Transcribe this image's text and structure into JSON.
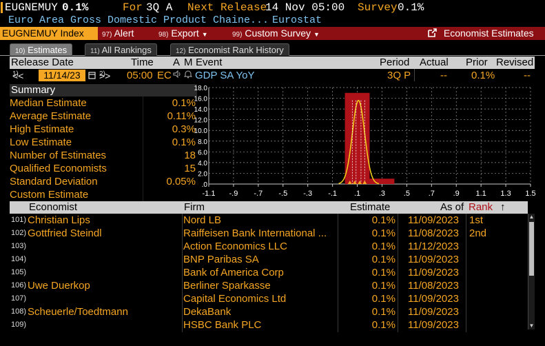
{
  "header": {
    "ticker": "EUGNEMUY",
    "value": "0.1%",
    "for_label": "For",
    "for_period": "3Q A",
    "next_release_label": "Next Release",
    "next_release_value": "14 Nov 05:00",
    "survey_label": "Survey",
    "survey_value": "0.1%",
    "description": "Euro Area Gross Domestic Product Chaine...",
    "source": "Eurostat"
  },
  "toolbar": {
    "security": "EUGNEMUY Index",
    "alert_num": "97)",
    "alert": "Alert",
    "export_num": "98)",
    "export": "Export",
    "custom_num": "99)",
    "custom": "Custom Survey",
    "economist_estimates": "Economist Estimates"
  },
  "tabs": [
    {
      "num": "10)",
      "label": "Estimates"
    },
    {
      "num": "11)",
      "label": "All Rankings"
    },
    {
      "num": "12)",
      "label": "Economist Rank History"
    }
  ],
  "release": {
    "headers": {
      "date": "Release Date",
      "time": "Time",
      "a": "A",
      "m": "M",
      "event": "Event",
      "period": "Period",
      "actual": "Actual",
      "prior": "Prior",
      "revised": "Revised"
    },
    "prev_num": "1)",
    "prev": "<<",
    "date": "11/14/23",
    "next_num": "2)",
    "next": ">>",
    "time": "05:00",
    "a": "EC",
    "event": "GDP SA YoY",
    "period": "3Q P",
    "actual": "--",
    "prior": "0.1%",
    "revised": "--"
  },
  "summary": {
    "title": "Summary",
    "rows": [
      {
        "label": "Median Estimate",
        "value": "0.1%"
      },
      {
        "label": "Average Estimate",
        "value": "0.11%"
      },
      {
        "label": "High Estimate",
        "value": "0.3%"
      },
      {
        "label": "Low Estimate",
        "value": "0.1%"
      },
      {
        "label": "Number of Estimates",
        "value": "18"
      },
      {
        "label": "Qualified Economists",
        "value": "15"
      },
      {
        "label": "Standard Deviation",
        "value": "0.05%"
      },
      {
        "label": "Custom Estimate",
        "value": ""
      }
    ]
  },
  "chart_data": {
    "type": "bar",
    "categories": [
      "0.1",
      "0.3"
    ],
    "values": [
      17,
      1
    ],
    "ylim": [
      0,
      18
    ],
    "xlim": [
      -1.1,
      1.5
    ],
    "yticks": [
      "18.0",
      "16.0",
      "14.0",
      "12.0",
      "10.0",
      "8.0",
      "6.0",
      "4.0",
      "2.0",
      ".0"
    ],
    "xticks": [
      "-1.1",
      "-.9",
      "-.7",
      "-.5",
      "-.3",
      "-.1",
      ".1",
      ".3",
      ".5",
      ".7",
      ".9",
      "1.1",
      "1.3",
      "1.5"
    ],
    "grid": true,
    "colors": {
      "bar": "#b0121a",
      "curve": "#f5d31a",
      "grid": "#9a9a9a"
    }
  },
  "estimates": {
    "headers": {
      "economist": "Economist",
      "firm": "Firm",
      "estimate": "Estimate",
      "asof": "As of",
      "rank": "Rank",
      "sort": "↑"
    },
    "rows": [
      {
        "idx": "101)",
        "economist": "Christian Lips",
        "firm": "Nord LB",
        "estimate": "0.1%",
        "asof": "11/09/2023",
        "rank": "1st"
      },
      {
        "idx": "102)",
        "economist": "Gottfried Steindl",
        "firm": "Raiffeisen Bank International ...",
        "estimate": "0.1%",
        "asof": "11/08/2023",
        "rank": "2nd"
      },
      {
        "idx": "103)",
        "economist": "",
        "firm": "Action Economics LLC",
        "estimate": "0.1%",
        "asof": "11/12/2023",
        "rank": ""
      },
      {
        "idx": "104)",
        "economist": "",
        "firm": "BNP Paribas SA",
        "estimate": "0.1%",
        "asof": "11/09/2023",
        "rank": ""
      },
      {
        "idx": "105)",
        "economist": "",
        "firm": "Bank of America Corp",
        "estimate": "0.1%",
        "asof": "11/09/2023",
        "rank": ""
      },
      {
        "idx": "106)",
        "economist": "Uwe Duerkop",
        "firm": "Berliner Sparkasse",
        "estimate": "0.1%",
        "asof": "11/08/2023",
        "rank": ""
      },
      {
        "idx": "107)",
        "economist": "",
        "firm": "Capital Economics Ltd",
        "estimate": "0.1%",
        "asof": "11/09/2023",
        "rank": ""
      },
      {
        "idx": "108)",
        "economist": "Scheuerle/Toedtmann",
        "firm": "DekaBank",
        "estimate": "0.1%",
        "asof": "11/09/2023",
        "rank": ""
      },
      {
        "idx": "109)",
        "economist": "",
        "firm": "HSBC Bank PLC",
        "estimate": "0.1%",
        "asof": "11/09/2023",
        "rank": ""
      }
    ]
  }
}
